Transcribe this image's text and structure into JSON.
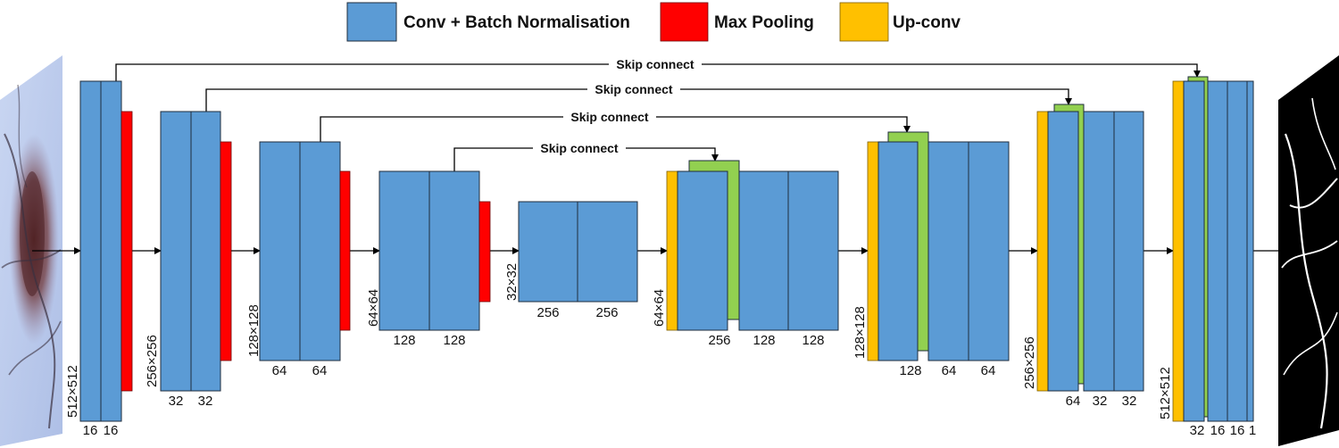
{
  "legend": {
    "conv_label": "Conv + Batch Normalisation",
    "pool_label": "Max Pooling",
    "upconv_label": "Up-conv"
  },
  "skip_labels": [
    "Skip connect",
    "Skip connect",
    "Skip connect",
    "Skip connect"
  ],
  "encoder": [
    {
      "resolution": "512×512",
      "channels": [
        "16",
        "16"
      ]
    },
    {
      "resolution": "256×256",
      "channels": [
        "32",
        "32"
      ]
    },
    {
      "resolution": "128×128",
      "channels": [
        "64",
        "64"
      ]
    },
    {
      "resolution": "64×64",
      "channels": [
        "128",
        "128"
      ]
    }
  ],
  "bottleneck": {
    "resolution": "32×32",
    "channels": [
      "256",
      "256"
    ]
  },
  "decoder": [
    {
      "resolution": "64×64",
      "channels": [
        "256",
        "128",
        "128"
      ]
    },
    {
      "resolution": "128×128",
      "channels": [
        "128",
        "64",
        "64"
      ]
    },
    {
      "resolution": "256×256",
      "channels": [
        "64",
        "32",
        "32"
      ]
    },
    {
      "resolution": "512×512",
      "channels": [
        "32",
        "16",
        "16",
        "1"
      ]
    }
  ],
  "colors": {
    "conv": "#5b9bd5",
    "pool": "#ff0000",
    "upconv": "#ffc000",
    "concat": "#92d050"
  }
}
